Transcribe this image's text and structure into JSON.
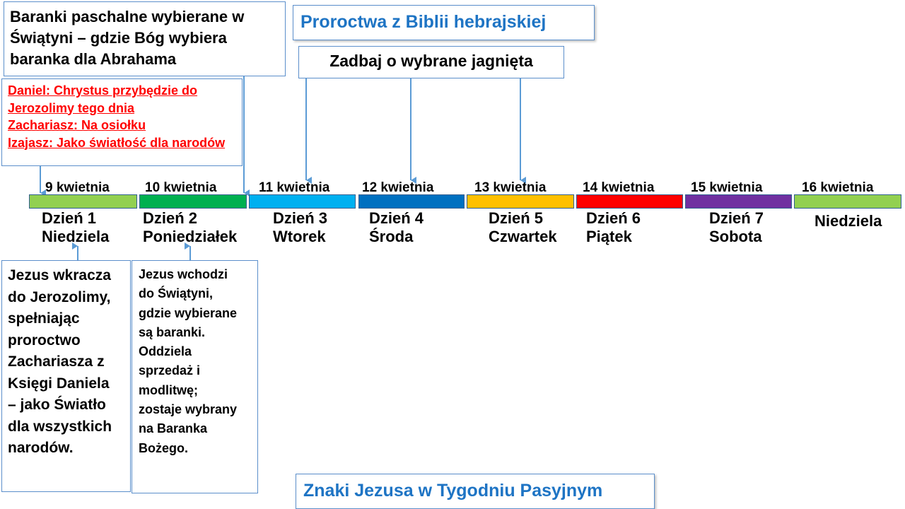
{
  "top_left_note": "Baranki paschalne wybierane w Świątyni – gdzie Bóg wybiera baranka dla Abrahama",
  "prophecies": [
    "Daniel: Chrystus przybędzie do Jerozolimy tego dnia",
    "Zachariasz: Na osiołku",
    "Izajasz: Jako światłość dla narodów"
  ],
  "title_top": "Proroctwa z Biblii hebrajskiej",
  "select_lambs": "Zadbaj o wybrane jagnięta",
  "title_bottom": "Znaki Jezusa w Tygodniu Pasyjnym",
  "timeline": [
    {
      "date": "9 kwietnia",
      "day": "Dzień 1\nNiedziela",
      "color": "#92d050"
    },
    {
      "date": "10 kwietnia",
      "day": "Dzień 2\nPoniedziałek",
      "color": "#00b050"
    },
    {
      "date": "11 kwietnia",
      "day": "Dzień 3\nWtorek",
      "color": "#00b0f0"
    },
    {
      "date": "12 kwietnia",
      "day": "Dzień 4\nŚroda",
      "color": "#0070c0"
    },
    {
      "date": "13 kwietnia",
      "day": "Dzień 5\nCzwartek",
      "color": "#ffc000"
    },
    {
      "date": "14 kwietnia",
      "day": "Dzień 6\nPiątek",
      "color": "#ff0000"
    },
    {
      "date": "15 kwietnia",
      "day": "Dzień 7\nSobota",
      "color": "#7030a0"
    },
    {
      "date": "16 kwietnia",
      "day": "Niedziela",
      "color": "#92d050"
    }
  ],
  "day1_note": "Jezus wkracza\ndo Jerozolimy,\nspełniając\nproroctwo\nZachariasza z\nKsięgi Daniela\n– jako Światło\ndla wszystkich\nnarodów.",
  "day2_note": "Jezus wchodzi\ndo Świątyni,\ngdzie wybierane\nsą baranki.\nOddziela\nsprzedaż i\nmodlitwę;\nzostaje wybrany\nna Baranka\nBożego.",
  "colors": {
    "arrow": "#5b9bd5",
    "title": "#1e74c4",
    "prophecy": "#ff0000",
    "border": "#5b8fcb"
  }
}
